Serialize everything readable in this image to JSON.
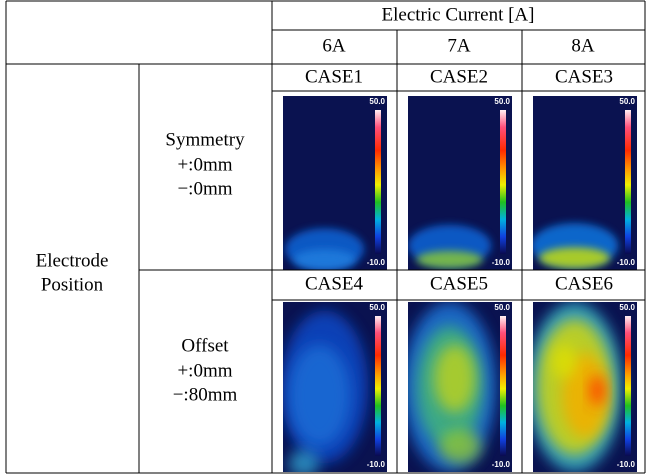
{
  "table": {
    "header": {
      "group": "Electric Current [A]",
      "columns": [
        "6A",
        "7A",
        "8A"
      ]
    },
    "row_label": [
      "Electrode",
      "Position"
    ],
    "rows": [
      {
        "label": [
          "Symmetry",
          "+:0mm",
          "−:0mm"
        ],
        "cases": [
          "CASE1",
          "CASE2",
          "CASE3"
        ]
      },
      {
        "label": [
          "Offset",
          "+:0mm",
          "−:80mm"
        ],
        "cases": [
          "CASE4",
          "CASE5",
          "CASE6"
        ]
      }
    ]
  },
  "colorbar": {
    "max": "50.0",
    "min": "-10.0"
  }
}
